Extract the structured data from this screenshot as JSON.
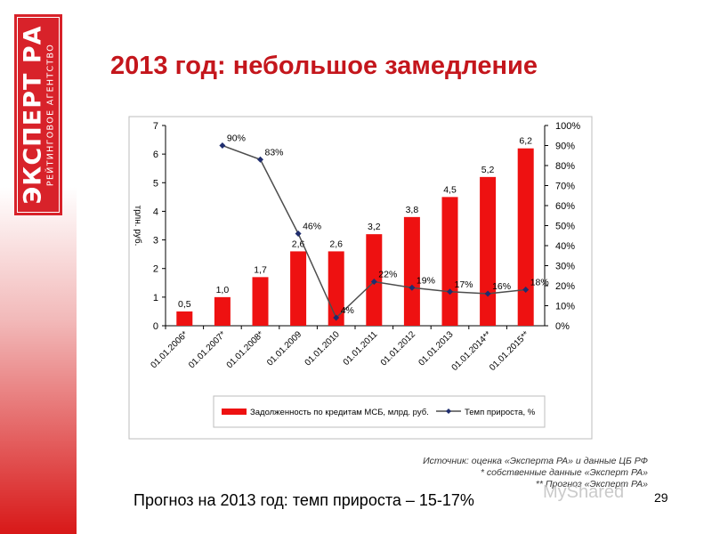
{
  "logo": {
    "main": "ЭКСПЕРТ РА",
    "sub": "РЕЙТИНГОВОЕ АГЕНТСТВО"
  },
  "slide": {
    "title": "2013 год: небольшое замедление",
    "forecast": "Прогноз на 2013 год: темп прироста – 15-17%",
    "page_number": "29",
    "watermark": "MyShared",
    "source_lines": [
      "Источник: оценка «Эксперта РА» и данные ЦБ РФ",
      "* собственные данные «Эксперт РА»",
      "** Прогноз «Эксперт РА»"
    ]
  },
  "colors": {
    "brand": "#d8222a",
    "bar": "#ee1111",
    "line": "#4d4d4d",
    "marker": "#1f2d6e",
    "title": "#c4161c"
  },
  "chart_data": {
    "type": "bar",
    "categories": [
      "01.01.2006*",
      "01.01.2007*",
      "01.01.2008*",
      "01.01.2009",
      "01.01.2010",
      "01.01.2011",
      "01.01.2012",
      "01.01.2013",
      "01.01.2014**",
      "01.01.2015**"
    ],
    "series": [
      {
        "name": "Задолженность по кредитам МСБ, млрд. руб.",
        "type": "bar",
        "axis": "left",
        "values": [
          0.5,
          1.0,
          1.7,
          2.6,
          2.6,
          3.2,
          3.8,
          4.5,
          5.2,
          6.2
        ],
        "labels": [
          "0,5",
          "1,0",
          "1,7",
          "2,6",
          "2,6",
          "3,2",
          "3,8",
          "4,5",
          "5,2",
          "6,2"
        ]
      },
      {
        "name": "Темп прироста, %",
        "type": "line",
        "axis": "right",
        "values": [
          null,
          90,
          83,
          46,
          4,
          22,
          19,
          17,
          16,
          18
        ],
        "labels": [
          "",
          "90%",
          "83%",
          "46%",
          "4%",
          "22%",
          "19%",
          "17%",
          "16%",
          "18%"
        ]
      }
    ],
    "ylabel": "трлн. руб.",
    "ylim": [
      0,
      7
    ],
    "y_ticks": [
      "0",
      "1",
      "2",
      "3",
      "4",
      "5",
      "6",
      "7"
    ],
    "y2lim": [
      0,
      100
    ],
    "y2_ticks": [
      "0%",
      "10%",
      "20%",
      "30%",
      "40%",
      "50%",
      "60%",
      "70%",
      "80%",
      "90%",
      "100%"
    ],
    "legend": "bottom",
    "grid": false
  }
}
